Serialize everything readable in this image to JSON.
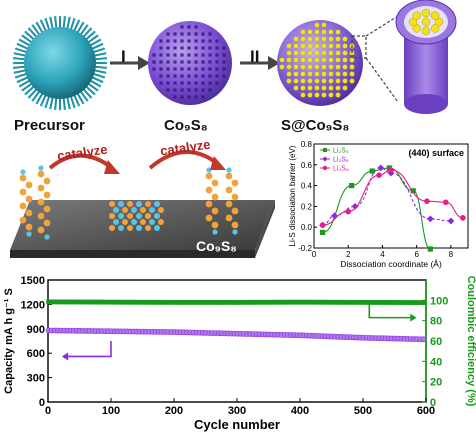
{
  "top_labels": {
    "precursor": "Precursor",
    "co9s8": "Co₉S₈",
    "s_co9s8": "S@Co₉S₈",
    "step1": "I",
    "step2": "II"
  },
  "catalysis": {
    "catalyze_left": "catalyze",
    "catalyze_right": "catalyze",
    "substrate_label": "Co₉S₈"
  },
  "colors": {
    "precursor": "#2ba3b8",
    "co9s8": "#7b4fd4",
    "sulfur": "#f2e21a",
    "li": "#5bc3e6",
    "s_atom": "#f2a23a",
    "green": "#1a9a1a",
    "purple": "#8a2be2",
    "pink": "#e0218a",
    "arrow_red": "#c0392b"
  },
  "chart_data": [
    {
      "type": "line",
      "annotation": "(440) surface",
      "xlabel": "Dissociation coordinate (Å)",
      "ylabel": "Li-S dissociation barrier (eV)",
      "xlim": [
        0,
        9
      ],
      "ylim": [
        -0.2,
        0.8
      ],
      "xticks": [
        0,
        2,
        4,
        6,
        8
      ],
      "yticks": [
        -0.2,
        0.0,
        0.2,
        0.4,
        0.6,
        0.8
      ],
      "legend_position": "top-left",
      "series": [
        {
          "name": "Li₂S₄",
          "color": "#1a9a1a",
          "marker": "square",
          "x": [
            0.5,
            2.2,
            3.4,
            4.4,
            5.8,
            6.8
          ],
          "y": [
            -0.05,
            0.4,
            0.54,
            0.57,
            0.35,
            -0.21
          ]
        },
        {
          "name": "Li₂S₆",
          "color": "#8a2be2",
          "marker": "diamond",
          "x": [
            0.5,
            1.2,
            2.4,
            3.9,
            4.5,
            6.8,
            8.0
          ],
          "y": [
            0.02,
            0.11,
            0.2,
            0.57,
            0.52,
            0.08,
            0.06
          ]
        },
        {
          "name": "Li₂S₈",
          "color": "#e0218a",
          "marker": "circle",
          "x": [
            0.5,
            2.0,
            3.8,
            4.5,
            6.6,
            7.7,
            8.7
          ],
          "y": [
            0.02,
            0.15,
            0.5,
            0.55,
            0.25,
            0.24,
            0.09
          ]
        }
      ]
    },
    {
      "type": "scatter",
      "xlabel": "Cycle number",
      "ylabel": "Capacity mA h g⁻¹ S",
      "y2label": "Coulombic efficiency (%)",
      "xlim": [
        0,
        600
      ],
      "ylim": [
        0,
        1500
      ],
      "y2lim": [
        0,
        120
      ],
      "xticks": [
        0,
        100,
        200,
        300,
        400,
        500,
        600
      ],
      "yticks": [
        0,
        300,
        600,
        900,
        1200,
        1500
      ],
      "y2ticks": [
        0,
        20,
        40,
        60,
        80,
        100
      ],
      "series": [
        {
          "name": "Capacity",
          "axis": "left",
          "color": "#8a2be2",
          "x": [
            0,
            1,
            100,
            200,
            300,
            400,
            500,
            600
          ],
          "y": [
            900,
            880,
            870,
            860,
            840,
            820,
            790,
            770
          ]
        },
        {
          "name": "Coulombic efficiency",
          "axis": "right",
          "color": "#1a9a1a",
          "x": [
            0,
            100,
            200,
            300,
            400,
            500,
            600
          ],
          "y": [
            98.5,
            98.2,
            98.0,
            98.0,
            98.2,
            98.0,
            97.8
          ]
        }
      ]
    }
  ]
}
